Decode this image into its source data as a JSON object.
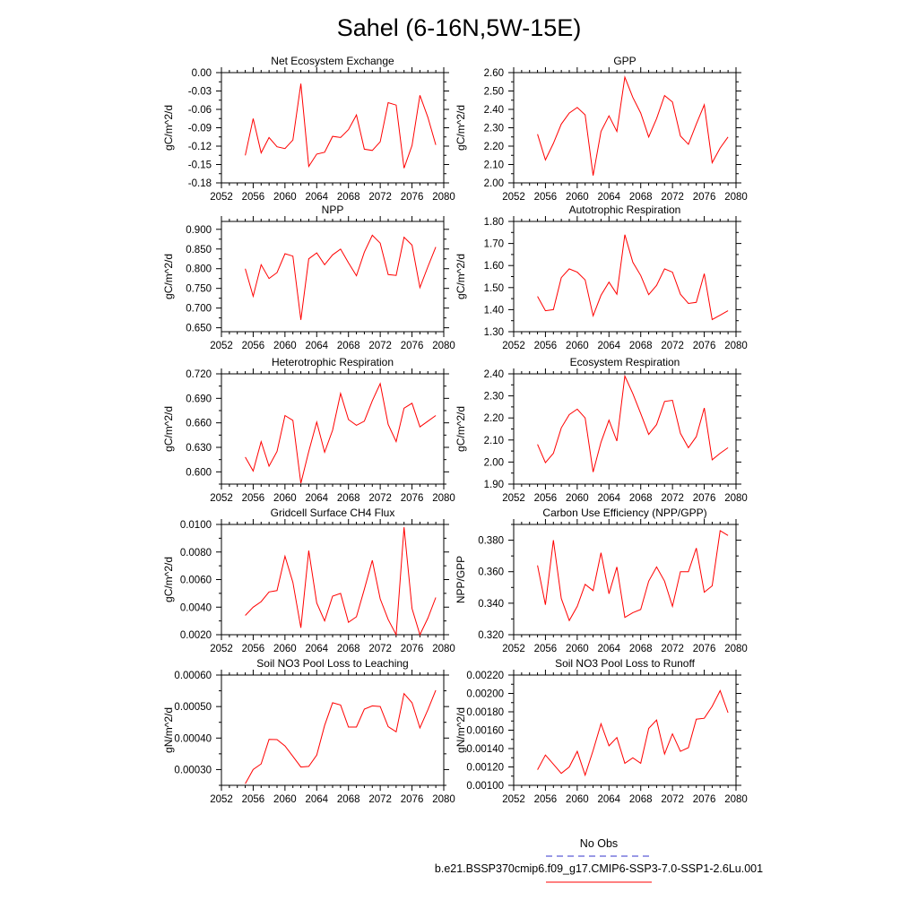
{
  "title": "Sahel (6-16N,5W-15E)",
  "colors": {
    "model": "#ff0000",
    "obs": "#3333cc",
    "axis": "#000000"
  },
  "legend": [
    {
      "label": "No Obs",
      "style": "dashed",
      "color": "#3333cc"
    },
    {
      "label": "b.e21.BSSP370cmip6.f09_g17.CMIP6-SSP3-7.0-SSP1-2.6Lu.001",
      "style": "solid",
      "color": "#ff0000"
    }
  ],
  "chart_data": [
    {
      "type": "line",
      "title": "Net Ecosystem Exchange",
      "ylabel": "gC/m^2/d",
      "xlim": [
        2052,
        2080
      ],
      "xticks": [
        "2052",
        "2056",
        "2060",
        "2064",
        "2068",
        "2072",
        "2076",
        "2080"
      ],
      "ylim": [
        -0.18,
        0.0
      ],
      "yticks": [
        "0.00",
        "-0.03",
        "-0.06",
        "-0.09",
        "-0.12",
        "-0.15",
        "-0.18"
      ],
      "ytick_values": [
        0.0,
        -0.03,
        -0.06,
        -0.09,
        -0.12,
        -0.15,
        -0.18
      ],
      "x": [
        2055,
        2056,
        2057,
        2058,
        2059,
        2060,
        2061,
        2062,
        2063,
        2064,
        2065,
        2066,
        2067,
        2068,
        2069,
        2070,
        2071,
        2072,
        2073,
        2074,
        2075,
        2076,
        2077,
        2078,
        2079
      ],
      "series": [
        {
          "values": [
            -0.135,
            -0.075,
            -0.131,
            -0.106,
            -0.121,
            -0.124,
            -0.11,
            -0.018,
            -0.153,
            -0.133,
            -0.13,
            -0.104,
            -0.106,
            -0.093,
            -0.069,
            -0.125,
            -0.127,
            -0.113,
            -0.049,
            -0.053,
            -0.156,
            -0.119,
            -0.037,
            -0.073,
            -0.118
          ]
        }
      ]
    },
    {
      "type": "line",
      "title": "GPP",
      "ylabel": "gC/m^2/d",
      "xlim": [
        2052,
        2080
      ],
      "xticks": [
        "2052",
        "2056",
        "2060",
        "2064",
        "2068",
        "2072",
        "2076",
        "2080"
      ],
      "ylim": [
        2.0,
        2.6
      ],
      "yticks": [
        "2.60",
        "2.50",
        "2.40",
        "2.30",
        "2.20",
        "2.10",
        "2.00"
      ],
      "ytick_values": [
        2.6,
        2.5,
        2.4,
        2.3,
        2.2,
        2.1,
        2.0
      ],
      "x": [
        2055,
        2056,
        2057,
        2058,
        2059,
        2060,
        2061,
        2062,
        2063,
        2064,
        2065,
        2066,
        2067,
        2068,
        2069,
        2070,
        2071,
        2072,
        2073,
        2074,
        2075,
        2076,
        2077,
        2078,
        2079
      ],
      "series": [
        {
          "values": [
            2.265,
            2.125,
            2.215,
            2.32,
            2.38,
            2.41,
            2.37,
            2.04,
            2.28,
            2.365,
            2.28,
            2.575,
            2.465,
            2.38,
            2.25,
            2.35,
            2.475,
            2.44,
            2.255,
            2.21,
            2.32,
            2.425,
            2.11,
            2.19,
            2.25
          ]
        }
      ]
    },
    {
      "type": "line",
      "title": "NPP",
      "ylabel": "gC/m^2/d",
      "xlim": [
        2052,
        2080
      ],
      "xticks": [
        "2052",
        "2056",
        "2060",
        "2064",
        "2068",
        "2072",
        "2076",
        "2080"
      ],
      "ylim": [
        0.64,
        0.92
      ],
      "yticks": [
        "0.900",
        "0.850",
        "0.800",
        "0.750",
        "0.700",
        "0.650"
      ],
      "ytick_values": [
        0.9,
        0.85,
        0.8,
        0.75,
        0.7,
        0.65
      ],
      "x": [
        2055,
        2056,
        2057,
        2058,
        2059,
        2060,
        2061,
        2062,
        2063,
        2064,
        2065,
        2066,
        2067,
        2068,
        2069,
        2070,
        2071,
        2072,
        2073,
        2074,
        2075,
        2076,
        2077,
        2078,
        2079
      ],
      "series": [
        {
          "values": [
            0.8,
            0.73,
            0.81,
            0.775,
            0.79,
            0.838,
            0.832,
            0.67,
            0.825,
            0.84,
            0.81,
            0.835,
            0.85,
            0.815,
            0.782,
            0.842,
            0.885,
            0.865,
            0.785,
            0.783,
            0.88,
            0.86,
            0.752,
            0.805,
            0.855
          ]
        }
      ]
    },
    {
      "type": "line",
      "title": "Autotrophic Respiration",
      "ylabel": "gC/m^2/d",
      "xlim": [
        2052,
        2080
      ],
      "xticks": [
        "2052",
        "2056",
        "2060",
        "2064",
        "2068",
        "2072",
        "2076",
        "2080"
      ],
      "ylim": [
        1.3,
        1.8
      ],
      "yticks": [
        "1.80",
        "1.70",
        "1.60",
        "1.50",
        "1.40",
        "1.30"
      ],
      "ytick_values": [
        1.8,
        1.7,
        1.6,
        1.5,
        1.4,
        1.3
      ],
      "x": [
        2055,
        2056,
        2057,
        2058,
        2059,
        2060,
        2061,
        2062,
        2063,
        2064,
        2065,
        2066,
        2067,
        2068,
        2069,
        2070,
        2071,
        2072,
        2073,
        2074,
        2075,
        2076,
        2077,
        2078,
        2079
      ],
      "series": [
        {
          "values": [
            1.46,
            1.395,
            1.4,
            1.545,
            1.585,
            1.57,
            1.535,
            1.372,
            1.465,
            1.525,
            1.47,
            1.74,
            1.615,
            1.555,
            1.468,
            1.51,
            1.585,
            1.57,
            1.47,
            1.428,
            1.433,
            1.563,
            1.355,
            1.375,
            1.395
          ]
        }
      ]
    },
    {
      "type": "line",
      "title": "Heterotrophic Respiration",
      "ylabel": "gC/m^2/d",
      "xlim": [
        2052,
        2080
      ],
      "xticks": [
        "2052",
        "2056",
        "2060",
        "2064",
        "2068",
        "2072",
        "2076",
        "2080"
      ],
      "ylim": [
        0.585,
        0.72
      ],
      "yticks": [
        "0.720",
        "0.690",
        "0.660",
        "0.630",
        "0.600"
      ],
      "ytick_values": [
        0.72,
        0.69,
        0.66,
        0.63,
        0.6
      ],
      "x": [
        2055,
        2056,
        2057,
        2058,
        2059,
        2060,
        2061,
        2062,
        2063,
        2064,
        2065,
        2066,
        2067,
        2068,
        2069,
        2070,
        2071,
        2072,
        2073,
        2074,
        2075,
        2076,
        2077,
        2078,
        2079
      ],
      "series": [
        {
          "values": [
            0.618,
            0.601,
            0.637,
            0.607,
            0.625,
            0.669,
            0.663,
            0.586,
            0.625,
            0.661,
            0.624,
            0.651,
            0.696,
            0.664,
            0.657,
            0.662,
            0.687,
            0.708,
            0.658,
            0.637,
            0.678,
            0.684,
            0.655,
            0.662,
            0.669
          ]
        }
      ]
    },
    {
      "type": "line",
      "title": "Ecosystem Respiration",
      "ylabel": "gC/m^2/d",
      "xlim": [
        2052,
        2080
      ],
      "xticks": [
        "2052",
        "2056",
        "2060",
        "2064",
        "2068",
        "2072",
        "2076",
        "2080"
      ],
      "ylim": [
        1.9,
        2.4
      ],
      "yticks": [
        "2.40",
        "2.30",
        "2.20",
        "2.10",
        "2.00",
        "1.90"
      ],
      "ytick_values": [
        2.4,
        2.3,
        2.2,
        2.1,
        2.0,
        1.9
      ],
      "x": [
        2055,
        2056,
        2057,
        2058,
        2059,
        2060,
        2061,
        2062,
        2063,
        2064,
        2065,
        2066,
        2067,
        2068,
        2069,
        2070,
        2071,
        2072,
        2073,
        2074,
        2075,
        2076,
        2077,
        2078,
        2079
      ],
      "series": [
        {
          "values": [
            2.08,
            1.997,
            2.04,
            2.155,
            2.215,
            2.24,
            2.2,
            1.955,
            2.09,
            2.19,
            2.095,
            2.39,
            2.31,
            2.22,
            2.125,
            2.17,
            2.275,
            2.28,
            2.13,
            2.065,
            2.115,
            2.245,
            2.01,
            2.04,
            2.065
          ]
        }
      ]
    },
    {
      "type": "line",
      "title": "Gridcell Surface CH4 Flux",
      "ylabel": "gC/m^2/d",
      "xlim": [
        2052,
        2080
      ],
      "xticks": [
        "2052",
        "2056",
        "2060",
        "2064",
        "2068",
        "2072",
        "2076",
        "2080"
      ],
      "ylim": [
        0.002,
        0.01
      ],
      "yticks": [
        "0.0100",
        "0.0080",
        "0.0060",
        "0.0040",
        "0.0020"
      ],
      "ytick_values": [
        0.01,
        0.008,
        0.006,
        0.004,
        0.002
      ],
      "x": [
        2055,
        2056,
        2057,
        2058,
        2059,
        2060,
        2061,
        2062,
        2063,
        2064,
        2065,
        2066,
        2067,
        2068,
        2069,
        2070,
        2071,
        2072,
        2073,
        2074,
        2075,
        2076,
        2077,
        2078,
        2079
      ],
      "series": [
        {
          "values": [
            0.0034,
            0.004,
            0.0044,
            0.0051,
            0.0052,
            0.0077,
            0.0058,
            0.0025,
            0.0081,
            0.0043,
            0.003,
            0.0048,
            0.005,
            0.0029,
            0.0033,
            0.0053,
            0.0074,
            0.0046,
            0.0031,
            0.002,
            0.0098,
            0.0039,
            0.002,
            0.0032,
            0.0047
          ]
        }
      ]
    },
    {
      "type": "line",
      "title": "Carbon Use Efficiency (NPP/GPP)",
      "ylabel": "NPP/GPP",
      "xlim": [
        2052,
        2080
      ],
      "xticks": [
        "2052",
        "2056",
        "2060",
        "2064",
        "2068",
        "2072",
        "2076",
        "2080"
      ],
      "ylim": [
        0.32,
        0.39
      ],
      "yticks": [
        "0.380",
        "0.360",
        "0.340",
        "0.320"
      ],
      "ytick_values": [
        0.38,
        0.36,
        0.34,
        0.32
      ],
      "x": [
        2055,
        2056,
        2057,
        2058,
        2059,
        2060,
        2061,
        2062,
        2063,
        2064,
        2065,
        2066,
        2067,
        2068,
        2069,
        2070,
        2071,
        2072,
        2073,
        2074,
        2075,
        2076,
        2077,
        2078,
        2079
      ],
      "series": [
        {
          "values": [
            0.364,
            0.339,
            0.38,
            0.343,
            0.329,
            0.338,
            0.352,
            0.348,
            0.372,
            0.346,
            0.363,
            0.331,
            0.334,
            0.336,
            0.354,
            0.363,
            0.354,
            0.338,
            0.36,
            0.36,
            0.375,
            0.347,
            0.351,
            0.386,
            0.383
          ]
        }
      ]
    },
    {
      "type": "line",
      "title": "Soil NO3 Pool Loss to Leaching",
      "ylabel": "gN/m^2/d",
      "xlim": [
        2052,
        2080
      ],
      "xticks": [
        "2052",
        "2056",
        "2060",
        "2064",
        "2068",
        "2072",
        "2076",
        "2080"
      ],
      "ylim": [
        0.00025,
        0.0006
      ],
      "yticks": [
        "0.00060",
        "0.00050",
        "0.00040",
        "0.00030"
      ],
      "ytick_values": [
        0.0006,
        0.0005,
        0.0004,
        0.0003
      ],
      "x": [
        2055,
        2056,
        2057,
        2058,
        2059,
        2060,
        2061,
        2062,
        2063,
        2064,
        2065,
        2066,
        2067,
        2068,
        2069,
        2070,
        2071,
        2072,
        2073,
        2074,
        2075,
        2076,
        2077,
        2078,
        2079
      ],
      "series": [
        {
          "values": [
            0.000255,
            0.0003,
            0.000318,
            0.000396,
            0.000395,
            0.000375,
            0.000342,
            0.000308,
            0.00031,
            0.000346,
            0.00044,
            0.000512,
            0.000505,
            0.000435,
            0.000435,
            0.000492,
            0.000502,
            0.0005,
            0.000436,
            0.00042,
            0.000541,
            0.000512,
            0.000432,
            0.00049,
            0.000552
          ]
        }
      ]
    },
    {
      "type": "line",
      "title": "Soil NO3 Pool Loss to Runoff",
      "ylabel": "gN/m^2/d",
      "xlim": [
        2052,
        2080
      ],
      "xticks": [
        "2052",
        "2056",
        "2060",
        "2064",
        "2068",
        "2072",
        "2076",
        "2080"
      ],
      "ylim": [
        0.001,
        0.0022
      ],
      "yticks": [
        "0.00220",
        "0.00200",
        "0.00180",
        "0.00160",
        "0.00140",
        "0.00120",
        "0.00100"
      ],
      "ytick_values": [
        0.0022,
        0.002,
        0.0018,
        0.0016,
        0.0014,
        0.0012,
        0.001
      ],
      "x": [
        2055,
        2056,
        2057,
        2058,
        2059,
        2060,
        2061,
        2062,
        2063,
        2064,
        2065,
        2066,
        2067,
        2068,
        2069,
        2070,
        2071,
        2072,
        2073,
        2074,
        2075,
        2076,
        2077,
        2078,
        2079
      ],
      "series": [
        {
          "values": [
            0.00117,
            0.00133,
            0.00123,
            0.00113,
            0.0012,
            0.00137,
            0.00111,
            0.00138,
            0.00167,
            0.00143,
            0.00152,
            0.00124,
            0.0013,
            0.00124,
            0.00162,
            0.00171,
            0.00134,
            0.00156,
            0.00137,
            0.00141,
            0.00172,
            0.00173,
            0.00186,
            0.00203,
            0.00179
          ]
        }
      ]
    }
  ]
}
